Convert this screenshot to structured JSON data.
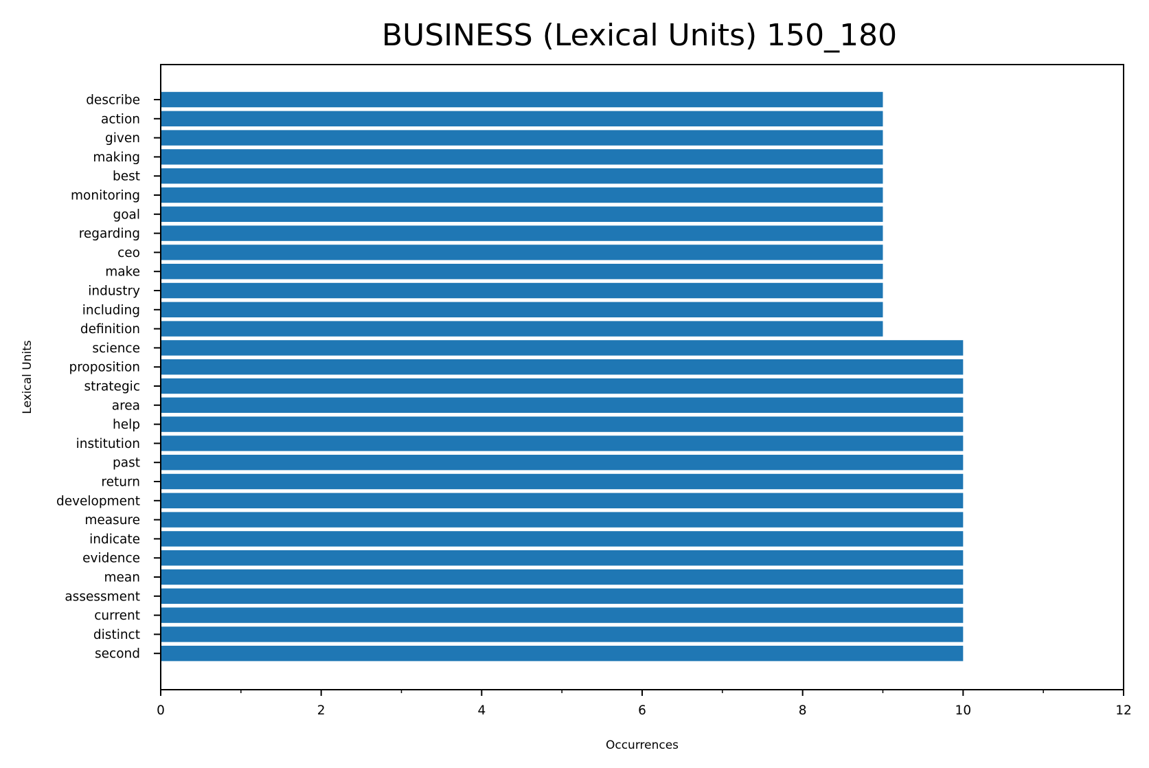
{
  "chart_data": {
    "type": "bar",
    "orientation": "horizontal",
    "title": "BUSINESS (Lexical Units) 150_180",
    "xlabel": "Occurrences",
    "ylabel": "Lexical Units",
    "xlim": [
      0,
      12
    ],
    "xticks": [
      0,
      2,
      4,
      6,
      8,
      10,
      12
    ],
    "xticks_minor": [
      1,
      3,
      5,
      7,
      9,
      11
    ],
    "grid": false,
    "bar_color": "#1f77b4",
    "categories": [
      "describe",
      "action",
      "given",
      "making",
      "best",
      "monitoring",
      "goal",
      "regarding",
      "ceo",
      "make",
      "industry",
      "including",
      "definition",
      "science",
      "proposition",
      "strategic",
      "area",
      "help",
      "institution",
      "past",
      "return",
      "development",
      "measure",
      "indicate",
      "evidence",
      "mean",
      "assessment",
      "current",
      "distinct",
      "second"
    ],
    "values": [
      9,
      9,
      9,
      9,
      9,
      9,
      9,
      9,
      9,
      9,
      9,
      9,
      9,
      10,
      10,
      10,
      10,
      10,
      10,
      10,
      10,
      10,
      10,
      10,
      10,
      10,
      10,
      10,
      10,
      10
    ]
  }
}
